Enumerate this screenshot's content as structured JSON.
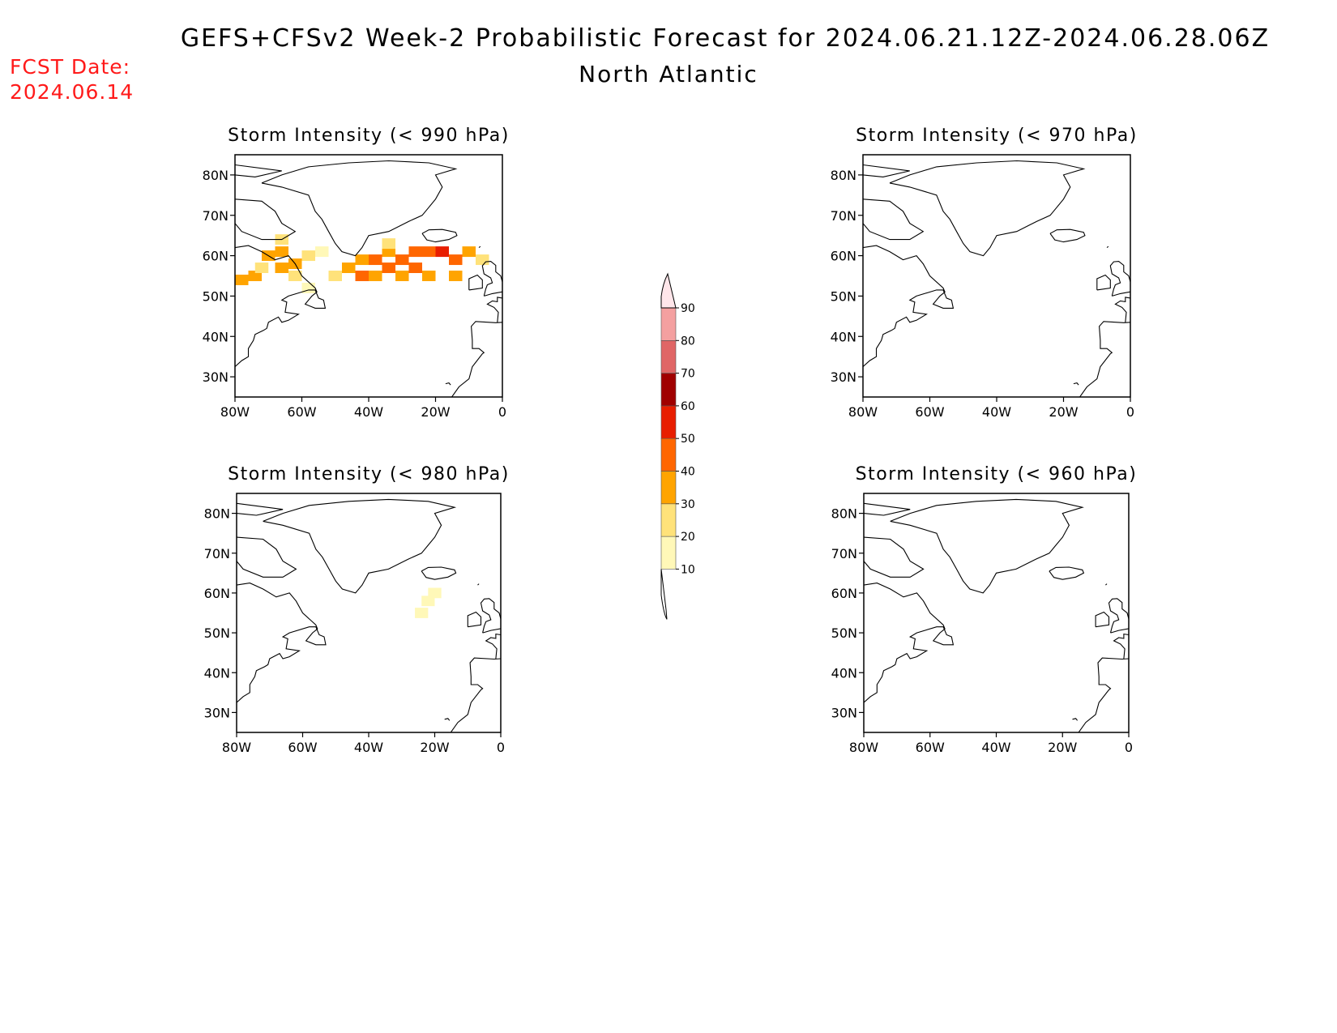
{
  "header": {
    "title": "GEFS+CFSv2 Week-2 Probabilistic Forecast for 2024.06.21.12Z-2024.06.28.06Z",
    "region": "North Atlantic",
    "fcst_label": "FCST Date:",
    "fcst_date": "2024.06.14",
    "fcst_color": "#ff1a1a"
  },
  "axes": {
    "lat_labels": [
      "80N",
      "70N",
      "60N",
      "50N",
      "40N",
      "30N"
    ],
    "lat_values": [
      80,
      70,
      60,
      50,
      40,
      30
    ],
    "lon_labels": [
      "80W",
      "60W",
      "40W",
      "20W",
      "0"
    ],
    "lon_values": [
      -80,
      -60,
      -40,
      -20,
      0
    ],
    "lat_range": [
      25,
      85
    ],
    "lon_range": [
      -80,
      0
    ]
  },
  "colorbar": {
    "levels": [
      "10",
      "20",
      "30",
      "40",
      "50",
      "60",
      "70",
      "80",
      "90"
    ],
    "colors": [
      "#fff8b8",
      "#ffe27a",
      "#ffa400",
      "#ff6600",
      "#e81e00",
      "#a00000",
      "#e06666",
      "#f4a0a0",
      "#ffe6ea"
    ]
  },
  "panels": [
    {
      "id": "p990",
      "title": "Storm Intensity (< 990 hPa)",
      "cells": [
        {
          "lon": -78,
          "lat": 54,
          "p": 30
        },
        {
          "lon": -74,
          "lat": 55,
          "p": 30
        },
        {
          "lon": -72,
          "lat": 57,
          "p": 20
        },
        {
          "lon": -70,
          "lat": 60,
          "p": 30
        },
        {
          "lon": -66,
          "lat": 57,
          "p": 30
        },
        {
          "lon": -66,
          "lat": 61,
          "p": 30
        },
        {
          "lon": -66,
          "lat": 64,
          "p": 20
        },
        {
          "lon": -62,
          "lat": 58,
          "p": 30
        },
        {
          "lon": -62,
          "lat": 55,
          "p": 20
        },
        {
          "lon": -58,
          "lat": 60,
          "p": 20
        },
        {
          "lon": -58,
          "lat": 52,
          "p": 10
        },
        {
          "lon": -54,
          "lat": 61,
          "p": 10
        },
        {
          "lon": -50,
          "lat": 55,
          "p": 20
        },
        {
          "lon": -46,
          "lat": 57,
          "p": 30
        },
        {
          "lon": -42,
          "lat": 59,
          "p": 30
        },
        {
          "lon": -42,
          "lat": 55,
          "p": 40
        },
        {
          "lon": -38,
          "lat": 59,
          "p": 40
        },
        {
          "lon": -38,
          "lat": 55,
          "p": 30
        },
        {
          "lon": -34,
          "lat": 61,
          "p": 30
        },
        {
          "lon": -34,
          "lat": 57,
          "p": 40
        },
        {
          "lon": -34,
          "lat": 63,
          "p": 20
        },
        {
          "lon": -30,
          "lat": 59,
          "p": 40
        },
        {
          "lon": -30,
          "lat": 55,
          "p": 30
        },
        {
          "lon": -26,
          "lat": 61,
          "p": 40
        },
        {
          "lon": -26,
          "lat": 57,
          "p": 40
        },
        {
          "lon": -22,
          "lat": 55,
          "p": 30
        },
        {
          "lon": -22,
          "lat": 61,
          "p": 40
        },
        {
          "lon": -18,
          "lat": 61,
          "p": 50
        },
        {
          "lon": -14,
          "lat": 59,
          "p": 40
        },
        {
          "lon": -14,
          "lat": 55,
          "p": 30
        },
        {
          "lon": -10,
          "lat": 61,
          "p": 30
        },
        {
          "lon": -6,
          "lat": 59,
          "p": 20
        }
      ]
    },
    {
      "id": "p970",
      "title": "Storm Intensity (< 970 hPa)",
      "cells": []
    },
    {
      "id": "p980",
      "title": "Storm Intensity (< 980 hPa)",
      "cells": [
        {
          "lon": -22,
          "lat": 58,
          "p": 10
        },
        {
          "lon": -20,
          "lat": 60,
          "p": 10
        },
        {
          "lon": -24,
          "lat": 55,
          "p": 10
        }
      ]
    },
    {
      "id": "p960",
      "title": "Storm Intensity (< 960 hPa)",
      "cells": []
    }
  ]
}
